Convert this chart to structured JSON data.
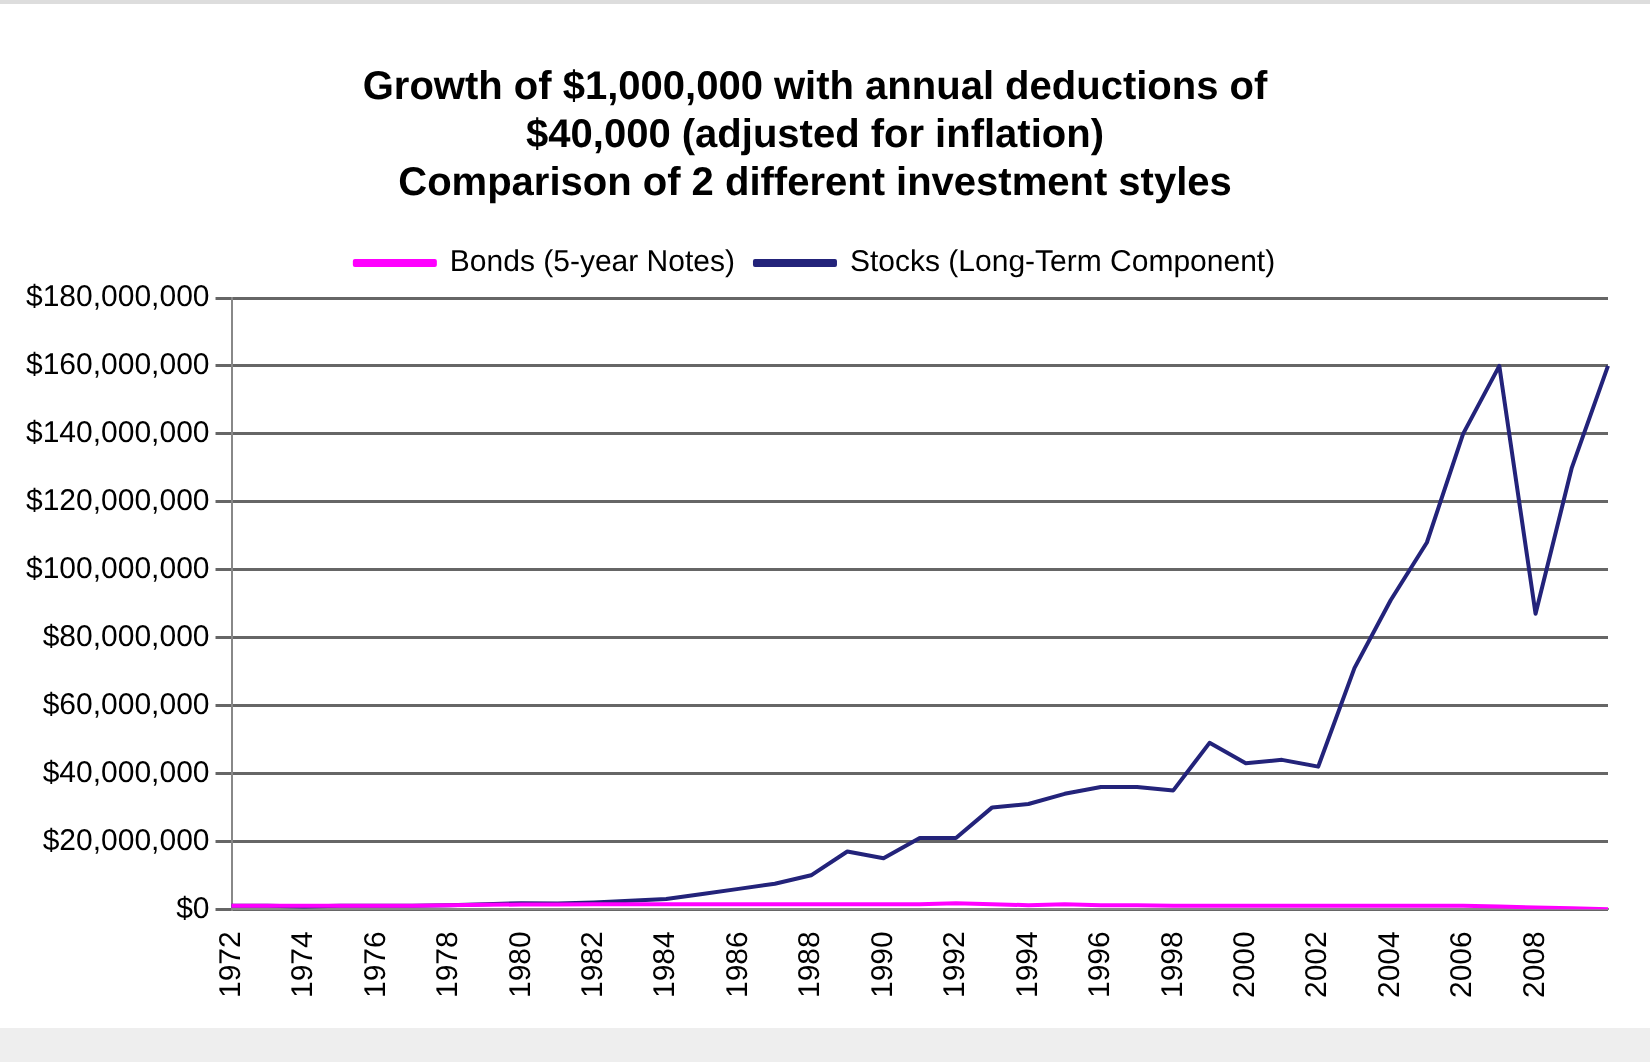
{
  "chart_data": {
    "type": "line",
    "title": [
      "Growth of $1,000,000 with annual deductions of",
      "$40,000 (adjusted for inflation)",
      "Comparison of 2 different investment styles"
    ],
    "categories": [
      "1972",
      null,
      "1974",
      null,
      "1976",
      null,
      "1978",
      null,
      "1980",
      null,
      "1982",
      null,
      "1984",
      null,
      "1986",
      null,
      "1988",
      null,
      "1990",
      null,
      "1992",
      null,
      "1994",
      null,
      "1996",
      null,
      "1998",
      null,
      "2000",
      null,
      "2002",
      null,
      "2004",
      null,
      "2006",
      null,
      "2008",
      null,
      null
    ],
    "series": [
      {
        "name": "Stocks (Long-Term Component)",
        "color": "#23237a",
        "values": [
          1000000,
          1000000,
          800000,
          1000000,
          1000000,
          1000000,
          1200000,
          1500000,
          1800000,
          1700000,
          2000000,
          2500000,
          3000000,
          4500000,
          6000000,
          7500000,
          10000000,
          17000000,
          15000000,
          21000000,
          21000000,
          30000000,
          31000000,
          34000000,
          36000000,
          36000000,
          35000000,
          49000000,
          43000000,
          44000000,
          42000000,
          71000000,
          91000000,
          108000000,
          140000000,
          160000000,
          87000000,
          130000000,
          160000000
        ]
      },
      {
        "name": "Bonds (5-year Notes)",
        "color": "#ff00ff",
        "values": [
          1000000,
          1000000,
          1000000,
          1000000,
          1000000,
          1000000,
          1200000,
          1300000,
          1400000,
          1400000,
          1500000,
          1500000,
          1500000,
          1500000,
          1500000,
          1500000,
          1500000,
          1500000,
          1500000,
          1500000,
          1800000,
          1500000,
          1200000,
          1500000,
          1200000,
          1200000,
          1000000,
          1000000,
          1000000,
          1000000,
          1000000,
          1000000,
          1000000,
          1000000,
          1000000,
          800000,
          500000,
          300000,
          0
        ]
      }
    ],
    "ylim": [
      0,
      180000000
    ],
    "yticks": [
      {
        "value": 0,
        "label": "$0"
      },
      {
        "value": 20000000,
        "label": "$20,000,000"
      },
      {
        "value": 40000000,
        "label": "$40,000,000"
      },
      {
        "value": 60000000,
        "label": "$60,000,000"
      },
      {
        "value": 80000000,
        "label": "$80,000,000"
      },
      {
        "value": 100000000,
        "label": "$100,000,000"
      },
      {
        "value": 120000000,
        "label": "$120,000,000"
      },
      {
        "value": 140000000,
        "label": "$140,000,000"
      },
      {
        "value": 160000000,
        "label": "$160,000,000"
      },
      {
        "value": 180000000,
        "label": "$180,000,000"
      }
    ],
    "grid": "y",
    "legend": "top",
    "marker": "none",
    "line_style": "solid"
  }
}
